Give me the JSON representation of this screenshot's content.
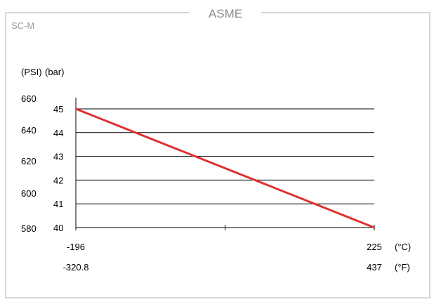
{
  "panel": {
    "title": "ASME",
    "label": "SC-M"
  },
  "chart_data": {
    "type": "line",
    "left_axis_units": [
      "(PSI)",
      "(bar)"
    ],
    "y_ticks_psi": [
      "660",
      "640",
      "620",
      "600",
      "580"
    ],
    "y_ticks_bar": [
      "45",
      "44",
      "43",
      "42",
      "41",
      "40"
    ],
    "ylim_bar": [
      40,
      45
    ],
    "xlim_c": [
      -196,
      225
    ],
    "x_ticks_c": [
      "-196",
      "225"
    ],
    "x_ticks_f": [
      "-320.8",
      "437"
    ],
    "x_units": [
      "(°C)",
      "(°F)"
    ],
    "grid": true,
    "series": [
      {
        "x": [
          -196,
          225
        ],
        "y": [
          45,
          40
        ],
        "color": "#e03030"
      }
    ]
  }
}
